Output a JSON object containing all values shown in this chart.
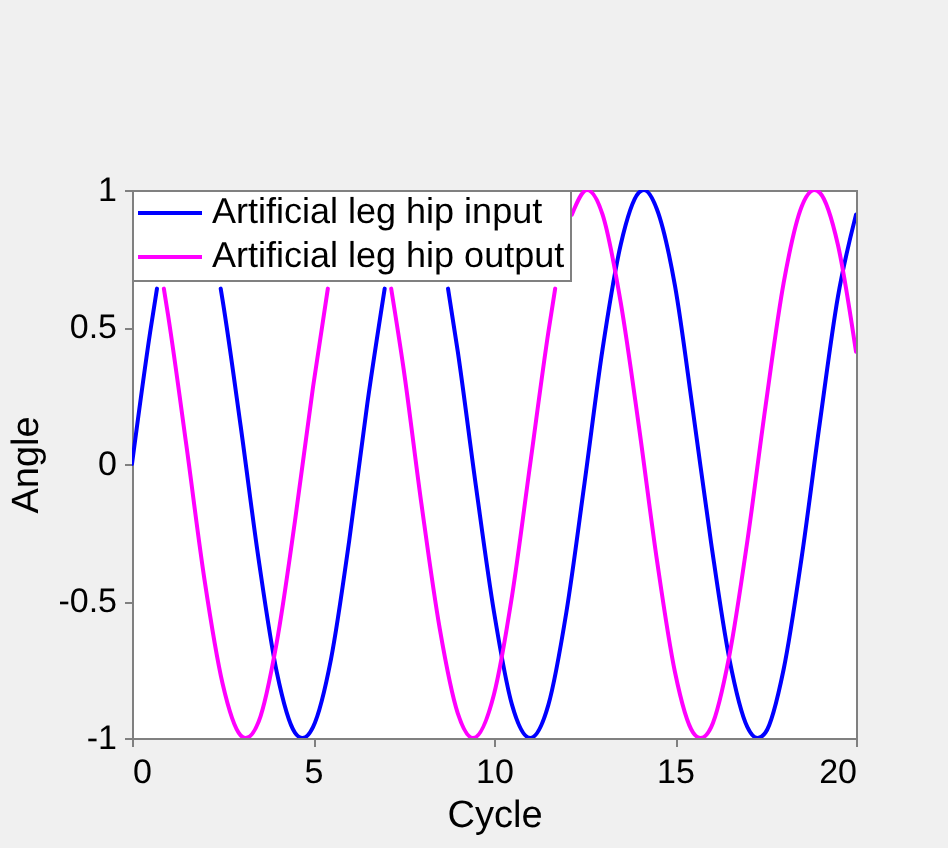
{
  "chart_data": {
    "type": "line",
    "xlabel": "Cycle",
    "ylabel": "Angle",
    "xlim": [
      0,
      20
    ],
    "ylim": [
      -1,
      1
    ],
    "xticks": [
      0,
      5,
      10,
      15,
      20
    ],
    "yticks": [
      -1,
      -0.5,
      0,
      0.5,
      1
    ],
    "grid": false,
    "legend": "top left",
    "series": [
      {
        "name": "Artificial leg hip input",
        "color": "#0000ff",
        "x": [
          0,
          0.5,
          0.69,
          1,
          1.5,
          2,
          2.45,
          2.5,
          3,
          3.5,
          4,
          4.5,
          4.71,
          5,
          5.5,
          6,
          6.5,
          6.98,
          7.5,
          8,
          8.5,
          8.73,
          9,
          9.5,
          10,
          10.5,
          11,
          11.5,
          12,
          12.5,
          13,
          13.5,
          14,
          14.14,
          14.5,
          15,
          15.5,
          16,
          16.5,
          17,
          17.28,
          17.5,
          18,
          18.5,
          19,
          19.5,
          20
        ],
        "values": [
          0,
          0.48,
          0.64,
          null,
          null,
          null,
          0.64,
          0.6,
          0.14,
          -0.35,
          -0.76,
          -0.98,
          -1,
          -0.96,
          -0.71,
          -0.28,
          0.22,
          0.64,
          null,
          null,
          null,
          0.64,
          0.41,
          -0.08,
          -0.54,
          -0.88,
          -1,
          -0.88,
          -0.54,
          -0.07,
          0.42,
          0.8,
          0.99,
          1,
          0.93,
          0.65,
          0.19,
          -0.29,
          -0.71,
          -0.96,
          -1,
          -0.98,
          -0.75,
          -0.34,
          0.15,
          0.61,
          0.91
        ]
      },
      {
        "name": "Artificial leg hip output",
        "color": "#ff00ff",
        "x": [
          0.88,
          1,
          1.5,
          2,
          2.5,
          3,
          3.14,
          3.5,
          4,
          4.5,
          5,
          5.41,
          5.5,
          6,
          6.5,
          7,
          7.16,
          7.5,
          8,
          8.5,
          9,
          9.42,
          10,
          10.5,
          11,
          11.5,
          11.69,
          12,
          12.15,
          12.57,
          13,
          13.5,
          14,
          14.5,
          15,
          15.5,
          15.71,
          16,
          16.5,
          17,
          17.5,
          18,
          18.5,
          18.85,
          19,
          19.5,
          20
        ],
        "values": [
          0.64,
          0.54,
          0.07,
          -0.42,
          -0.8,
          -0.99,
          -1,
          -0.94,
          -0.65,
          -0.21,
          0.28,
          0.64,
          null,
          null,
          null,
          null,
          0.64,
          0.35,
          -0.15,
          -0.6,
          -0.91,
          -1,
          -0.84,
          -0.48,
          0,
          0.48,
          0.64,
          null,
          0.91,
          1,
          0.91,
          0.59,
          0.14,
          -0.35,
          -0.76,
          -0.98,
          -1,
          -0.96,
          -0.7,
          -0.28,
          0.21,
          0.66,
          0.94,
          1,
          0.99,
          0.8,
          0.41
        ]
      }
    ]
  }
}
